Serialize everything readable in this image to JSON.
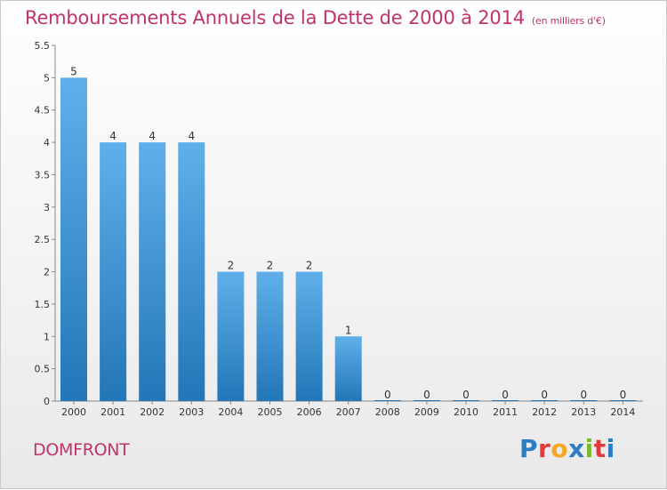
{
  "header": {
    "title": "Remboursements Annuels de la Dette de 2000 à 2014",
    "subtitle": "(en milliers d'€)"
  },
  "footer": {
    "commune": "DOMFRONT",
    "logo": "Proxiti"
  },
  "colors": {
    "accent": "#c2336b",
    "bar_top": "#5fb0ea",
    "bar_bottom": "#2376b7",
    "logo_letters": [
      "#2e7cc4",
      "#e23b3b",
      "#f5a623",
      "#2e7cc4",
      "#7cb82f",
      "#e23b3b",
      "#2e7cc4"
    ]
  },
  "chart_data": {
    "type": "bar",
    "title": "Remboursements Annuels de la Dette de 2000 à 2014",
    "categories": [
      "2000",
      "2001",
      "2002",
      "2003",
      "2004",
      "2005",
      "2006",
      "2007",
      "2008",
      "2009",
      "2010",
      "2011",
      "2012",
      "2013",
      "2014"
    ],
    "values": [
      5,
      4,
      4,
      4,
      2,
      2,
      2,
      1,
      0,
      0,
      0,
      0,
      0,
      0,
      0
    ],
    "data_labels": [
      "5",
      "4",
      "4",
      "4",
      "2",
      "2",
      "2",
      "1",
      "0",
      "0",
      "0",
      "0",
      "0",
      "0",
      "0"
    ],
    "ylim": [
      0,
      5.5
    ],
    "yticks": [
      0,
      0.5,
      1,
      1.5,
      2,
      2.5,
      3,
      3.5,
      4,
      4.5,
      5,
      5.5
    ],
    "ytick_labels": [
      "0",
      "0.5",
      "1",
      "1.5",
      "2",
      "2.5",
      "3",
      "3.5",
      "4",
      "4.5",
      "5",
      "5.5"
    ],
    "xlabel": "",
    "ylabel": "",
    "grid": false,
    "legend": "none"
  }
}
